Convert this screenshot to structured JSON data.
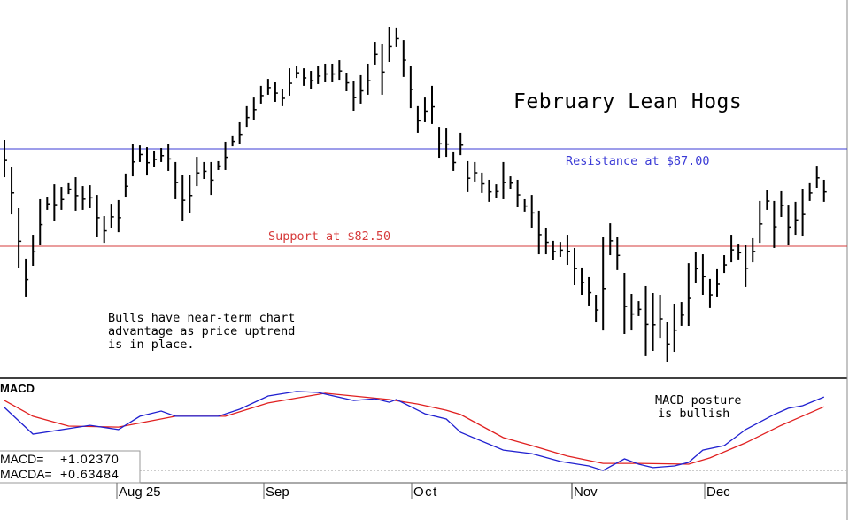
{
  "chart_data": [
    {
      "type": "bar",
      "subtype": "high-low price bars",
      "title": "February Lean Hogs",
      "annotations": {
        "resistance_label": "Resistance at $87.00",
        "support_label": "Support at $82.50",
        "note_lines": [
          "Bulls have near-term chart",
          "advantage as price uptrend",
          "is in place."
        ]
      },
      "reference_lines": [
        {
          "name": "resistance",
          "value": 87.0,
          "color": "#3b3bd6"
        },
        {
          "name": "support",
          "value": 82.5,
          "color": "#d63b3b"
        }
      ],
      "bars_high_low": [
        [
          87.41,
          85.69
        ],
        [
          86.18,
          83.97
        ],
        [
          84.26,
          81.48
        ],
        [
          81.93,
          80.17
        ],
        [
          83.03,
          81.6
        ],
        [
          84.67,
          82.54
        ],
        [
          84.79,
          84.18
        ],
        [
          85.36,
          83.65
        ],
        [
          85.24,
          84.18
        ],
        [
          85.41,
          84.91
        ],
        [
          85.69,
          84.14
        ],
        [
          85.28,
          84.18
        ],
        [
          85.32,
          84.26
        ],
        [
          84.87,
          82.95
        ],
        [
          83.89,
          82.66
        ],
        [
          84.46,
          83.36
        ],
        [
          84.63,
          83.15
        ],
        [
          85.86,
          84.79
        ],
        [
          87.21,
          85.73
        ],
        [
          87.16,
          86.39
        ],
        [
          87.08,
          85.77
        ],
        [
          86.92,
          86.18
        ],
        [
          87.04,
          86.39
        ],
        [
          87.21,
          85.98
        ],
        [
          86.39,
          84.67
        ],
        [
          85.81,
          83.65
        ],
        [
          85.81,
          84.05
        ],
        [
          86.63,
          85.28
        ],
        [
          86.39,
          85.61
        ],
        [
          86.39,
          84.87
        ],
        [
          86.43,
          86.02
        ],
        [
          87.33,
          86.02
        ],
        [
          87.62,
          87.12
        ],
        [
          88.23,
          87.21
        ],
        [
          88.97,
          88.02
        ],
        [
          89.37,
          88.35
        ],
        [
          89.91,
          89.09
        ],
        [
          90.23,
          89.5
        ],
        [
          90.07,
          89.17
        ],
        [
          89.78,
          88.97
        ],
        [
          90.72,
          89.46
        ],
        [
          90.81,
          90.27
        ],
        [
          90.72,
          89.91
        ],
        [
          90.6,
          89.78
        ],
        [
          90.81,
          89.99
        ],
        [
          90.93,
          90.07
        ],
        [
          90.93,
          90.07
        ],
        [
          91.09,
          90.19
        ],
        [
          90.52,
          89.66
        ],
        [
          90.11,
          88.76
        ],
        [
          90.4,
          89.09
        ],
        [
          90.93,
          89.5
        ],
        [
          91.95,
          90.89
        ],
        [
          91.83,
          89.5
        ],
        [
          92.61,
          91.01
        ],
        [
          92.57,
          91.71
        ],
        [
          92.03,
          90.32
        ],
        [
          90.81,
          88.88
        ],
        [
          88.97,
          87.74
        ],
        [
          89.37,
          88.23
        ],
        [
          89.91,
          88.15
        ],
        [
          88.02,
          86.59
        ],
        [
          87.94,
          86.63
        ],
        [
          86.84,
          85.98
        ],
        [
          87.74,
          86.71
        ],
        [
          86.43,
          85.0
        ],
        [
          86.39,
          85.49
        ],
        [
          85.9,
          84.96
        ],
        [
          85.57,
          84.55
        ],
        [
          85.36,
          84.75
        ],
        [
          86.39,
          84.67
        ],
        [
          85.73,
          85.16
        ],
        [
          85.57,
          84.3
        ],
        [
          84.67,
          84.1
        ],
        [
          84.87,
          83.36
        ],
        [
          84.14,
          82.13
        ],
        [
          83.36,
          82.13
        ],
        [
          82.75,
          81.85
        ],
        [
          82.7,
          82.01
        ],
        [
          83.03,
          81.64
        ],
        [
          82.42,
          80.7
        ],
        [
          81.52,
          80.25
        ],
        [
          81.07,
          79.76
        ],
        [
          80.25,
          78.98
        ],
        [
          82.91,
          78.61
        ],
        [
          83.56,
          82.09
        ],
        [
          82.91,
          81.4
        ],
        [
          81.27,
          78.45
        ],
        [
          80.29,
          78.61
        ],
        [
          79.96,
          79.27
        ],
        [
          80.66,
          77.43
        ],
        [
          80.33,
          77.67
        ],
        [
          80.25,
          78.24
        ],
        [
          79.02,
          77.14
        ],
        [
          79.84,
          77.63
        ],
        [
          79.92,
          78.82
        ],
        [
          81.72,
          78.82
        ],
        [
          82.25,
          80.82
        ],
        [
          82.13,
          80.25
        ],
        [
          80.99,
          79.64
        ],
        [
          81.44,
          80.17
        ],
        [
          82.09,
          81.27
        ],
        [
          83.03,
          81.76
        ],
        [
          82.58,
          81.89
        ],
        [
          82.54,
          80.62
        ],
        [
          82.87,
          81.76
        ],
        [
          84.59,
          82.66
        ],
        [
          85.08,
          84.18
        ],
        [
          84.59,
          82.42
        ],
        [
          85.04,
          83.85
        ],
        [
          84.42,
          82.54
        ],
        [
          84.55,
          83.03
        ],
        [
          85.16,
          82.99
        ],
        [
          85.41,
          84.59
        ],
        [
          86.22,
          85.2
        ],
        [
          85.57,
          84.55
        ]
      ],
      "xaxis_tick_labels": [
        "Aug 25",
        "Sep",
        "Oct",
        "Nov",
        "Dec"
      ],
      "bar_color": "#000000"
    },
    {
      "type": "line",
      "title": "MACD",
      "annotation_lines": [
        "MACD posture",
        "is bullish"
      ],
      "readout": {
        "macd_label": "MACD=",
        "macd_value": "+1.02370",
        "macda_label": "MACDA=",
        "macda_value": "+0.63484"
      },
      "series": [
        {
          "id": "macd",
          "color": "#2020d0",
          "points": [
            [
              0,
              0.6
            ],
            [
              4,
              -0.46
            ],
            [
              12,
              -0.11
            ],
            [
              16,
              -0.28
            ],
            [
              19,
              0.25
            ],
            [
              22,
              0.46
            ],
            [
              24,
              0.25
            ],
            [
              30,
              0.25
            ],
            [
              33,
              0.53
            ],
            [
              37,
              1.06
            ],
            [
              41,
              1.24
            ],
            [
              44,
              1.2
            ],
            [
              49,
              0.88
            ],
            [
              52,
              0.95
            ],
            [
              54,
              0.81
            ],
            [
              55,
              0.92
            ],
            [
              58,
              0.49
            ],
            [
              59,
              0.35
            ],
            [
              62,
              0.14
            ],
            [
              64,
              -0.39
            ],
            [
              70,
              -1.1
            ],
            [
              74,
              -1.24
            ],
            [
              78,
              -1.55
            ],
            [
              82,
              -1.73
            ],
            [
              84,
              -1.91
            ],
            [
              87,
              -1.45
            ],
            [
              89,
              -1.66
            ],
            [
              91,
              -1.8
            ],
            [
              94,
              -1.73
            ],
            [
              96,
              -1.59
            ],
            [
              98,
              -1.1
            ],
            [
              101,
              -0.92
            ],
            [
              104,
              -0.28
            ],
            [
              108,
              0.32
            ],
            [
              110,
              0.57
            ],
            [
              112,
              0.67
            ],
            [
              115,
              1.02
            ]
          ]
        },
        {
          "id": "macda",
          "color": "#e02020",
          "points": [
            [
              0,
              0.88
            ],
            [
              4,
              0.25
            ],
            [
              9,
              -0.14
            ],
            [
              16,
              -0.18
            ],
            [
              24,
              0.25
            ],
            [
              31,
              0.25
            ],
            [
              37,
              0.78
            ],
            [
              45,
              1.17
            ],
            [
              54,
              0.92
            ],
            [
              58,
              0.74
            ],
            [
              62,
              0.49
            ],
            [
              64,
              0.32
            ],
            [
              70,
              -0.6
            ],
            [
              74,
              -0.92
            ],
            [
              79,
              -1.34
            ],
            [
              84,
              -1.63
            ],
            [
              89,
              -1.63
            ],
            [
              96,
              -1.66
            ],
            [
              99,
              -1.41
            ],
            [
              104,
              -0.81
            ],
            [
              109,
              -0.11
            ],
            [
              115,
              0.63
            ]
          ]
        }
      ]
    }
  ]
}
